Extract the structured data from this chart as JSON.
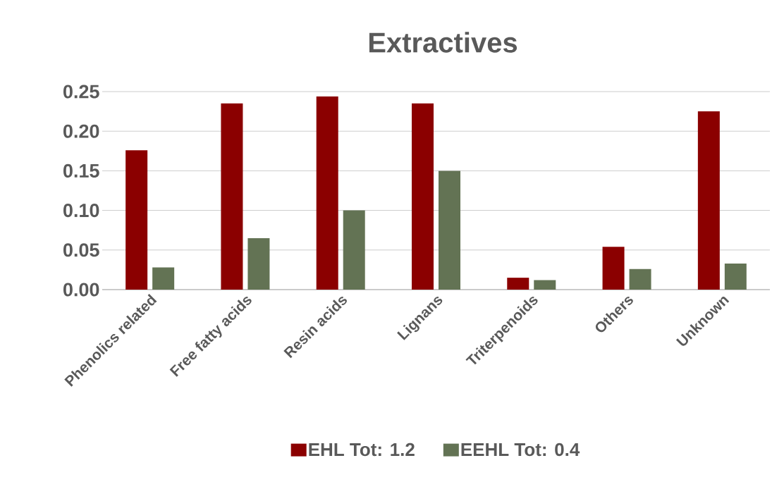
{
  "chart_data": {
    "type": "bar",
    "title": "Extractives",
    "categories": [
      "Phenolics related",
      "Free fatty acids",
      "Resin acids",
      "Lignans",
      "Triterpenoids",
      "Others",
      "Unknown"
    ],
    "series": [
      {
        "name": "EHL     Tot: 1.2",
        "color": "#8b0000",
        "values": [
          0.176,
          0.235,
          0.244,
          0.235,
          0.015,
          0.054,
          0.225
        ]
      },
      {
        "name": "EEHL     Tot: 0.4",
        "color": "#637354",
        "values": [
          0.028,
          0.065,
          0.1,
          0.15,
          0.012,
          0.026,
          0.033
        ]
      }
    ],
    "ylim": [
      0,
      0.25
    ],
    "yticks": [
      {
        "value": 0,
        "label": "0.00"
      },
      {
        "value": 0.05,
        "label": "0.05"
      },
      {
        "value": 0.1,
        "label": "0.10"
      },
      {
        "value": 0.15,
        "label": "0.15"
      },
      {
        "value": 0.2,
        "label": "0.20"
      },
      {
        "value": 0.25,
        "label": "0.25"
      }
    ],
    "grid": "y",
    "legend": "bottom"
  }
}
